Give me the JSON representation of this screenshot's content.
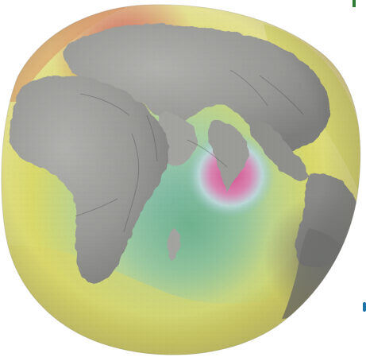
{
  "image": {
    "subject": "geoid-globe",
    "colors": {
      "background": "#ffffff",
      "yellow": "#d8d86a",
      "pale_yellow": "#e6e29a",
      "green": "#86c1a2",
      "teal": "#8fc3bb",
      "orange": "#d89c6c",
      "red": "#cf5f65",
      "magenta": "#d34f8c",
      "land_gray": "#9d9d9a",
      "land_shadow": "#6f706e",
      "edge_green": "#2e7d32",
      "edge_blue": "#1f74a8"
    }
  }
}
